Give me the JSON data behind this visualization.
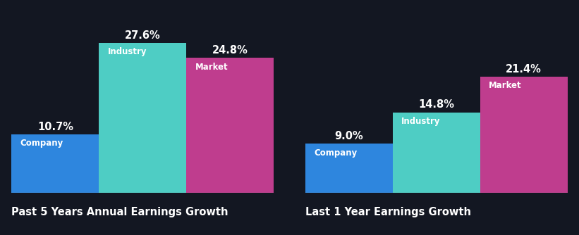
{
  "background_color": "#131722",
  "groups": [
    {
      "title": "Past 5 Years Annual Earnings Growth",
      "bars": [
        {
          "label": "Company",
          "value": 10.7,
          "color": "#2e86de"
        },
        {
          "label": "Industry",
          "value": 27.6,
          "color": "#4ecdc4"
        },
        {
          "label": "Market",
          "value": 24.8,
          "color": "#bf3d8e"
        }
      ]
    },
    {
      "title": "Last 1 Year Earnings Growth",
      "bars": [
        {
          "label": "Company",
          "value": 9.0,
          "color": "#2e86de"
        },
        {
          "label": "Industry",
          "value": 14.8,
          "color": "#4ecdc4"
        },
        {
          "label": "Market",
          "value": 21.4,
          "color": "#bf3d8e"
        }
      ]
    }
  ],
  "bar_width": 1.0,
  "label_fontsize": 8.5,
  "value_fontsize": 10.5,
  "title_fontsize": 10.5,
  "text_color": "#ffffff",
  "title_color": "#ffffff",
  "ylim": [
    0,
    32
  ]
}
